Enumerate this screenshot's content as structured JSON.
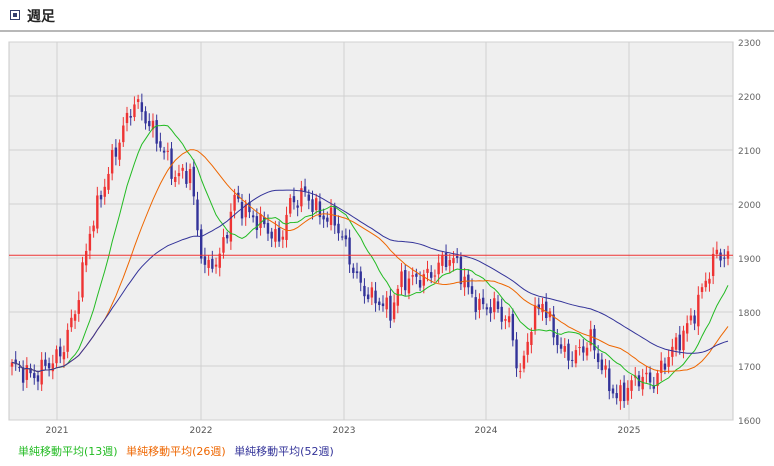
{
  "header": {
    "title": "週足"
  },
  "chart_data": {
    "type": "candlestick",
    "x_ticks": [
      "2021",
      "2022",
      "2023",
      "2024",
      "2025"
    ],
    "y_ticks": [
      1600,
      1700,
      1800,
      1900,
      2000,
      2100,
      2200,
      2300
    ],
    "ylim": [
      1600,
      2300
    ],
    "reference_line": 1905,
    "grid": true,
    "legend_position": "bottom-left",
    "close_anchors": [
      [
        0,
        1700
      ],
      [
        6,
        1680
      ],
      [
        9,
        1700
      ],
      [
        13,
        1720
      ],
      [
        17,
        1800
      ],
      [
        21,
        1950
      ],
      [
        26,
        2060
      ],
      [
        30,
        2140
      ],
      [
        33,
        2190
      ],
      [
        36,
        2160
      ],
      [
        40,
        2110
      ],
      [
        44,
        2050
      ],
      [
        48,
        2060
      ],
      [
        50,
        1950
      ],
      [
        52,
        1880
      ],
      [
        56,
        1900
      ],
      [
        60,
        2010
      ],
      [
        64,
        1980
      ],
      [
        68,
        1960
      ],
      [
        72,
        1930
      ],
      [
        75,
        2000
      ],
      [
        79,
        2020
      ],
      [
        83,
        1980
      ],
      [
        87,
        1970
      ],
      [
        90,
        1920
      ],
      [
        93,
        1860
      ],
      [
        96,
        1830
      ],
      [
        99,
        1820
      ],
      [
        102,
        1800
      ],
      [
        105,
        1860
      ],
      [
        109,
        1860
      ],
      [
        113,
        1870
      ],
      [
        117,
        1900
      ],
      [
        120,
        1890
      ],
      [
        123,
        1840
      ],
      [
        126,
        1810
      ],
      [
        130,
        1810
      ],
      [
        134,
        1780
      ],
      [
        137,
        1680
      ],
      [
        140,
        1780
      ],
      [
        143,
        1820
      ],
      [
        146,
        1760
      ],
      [
        149,
        1720
      ],
      [
        152,
        1720
      ],
      [
        156,
        1750
      ],
      [
        160,
        1680
      ],
      [
        163,
        1640
      ],
      [
        166,
        1660
      ],
      [
        169,
        1680
      ],
      [
        173,
        1670
      ],
      [
        177,
        1720
      ],
      [
        181,
        1760
      ],
      [
        184,
        1800
      ],
      [
        187,
        1860
      ],
      [
        190,
        1910
      ],
      [
        193,
        1900
      ]
    ],
    "series": [
      {
        "name": "単純移動平均(13週)",
        "color": "#22bb22",
        "period": 13
      },
      {
        "name": "単純移動平均(26週)",
        "color": "#ee6600",
        "period": 26
      },
      {
        "name": "単純移動平均(52週)",
        "color": "#333399",
        "period": 52
      }
    ],
    "candle_colors": {
      "up": "#ee3333",
      "down": "#333399"
    },
    "reference_color": "#ee3333"
  }
}
